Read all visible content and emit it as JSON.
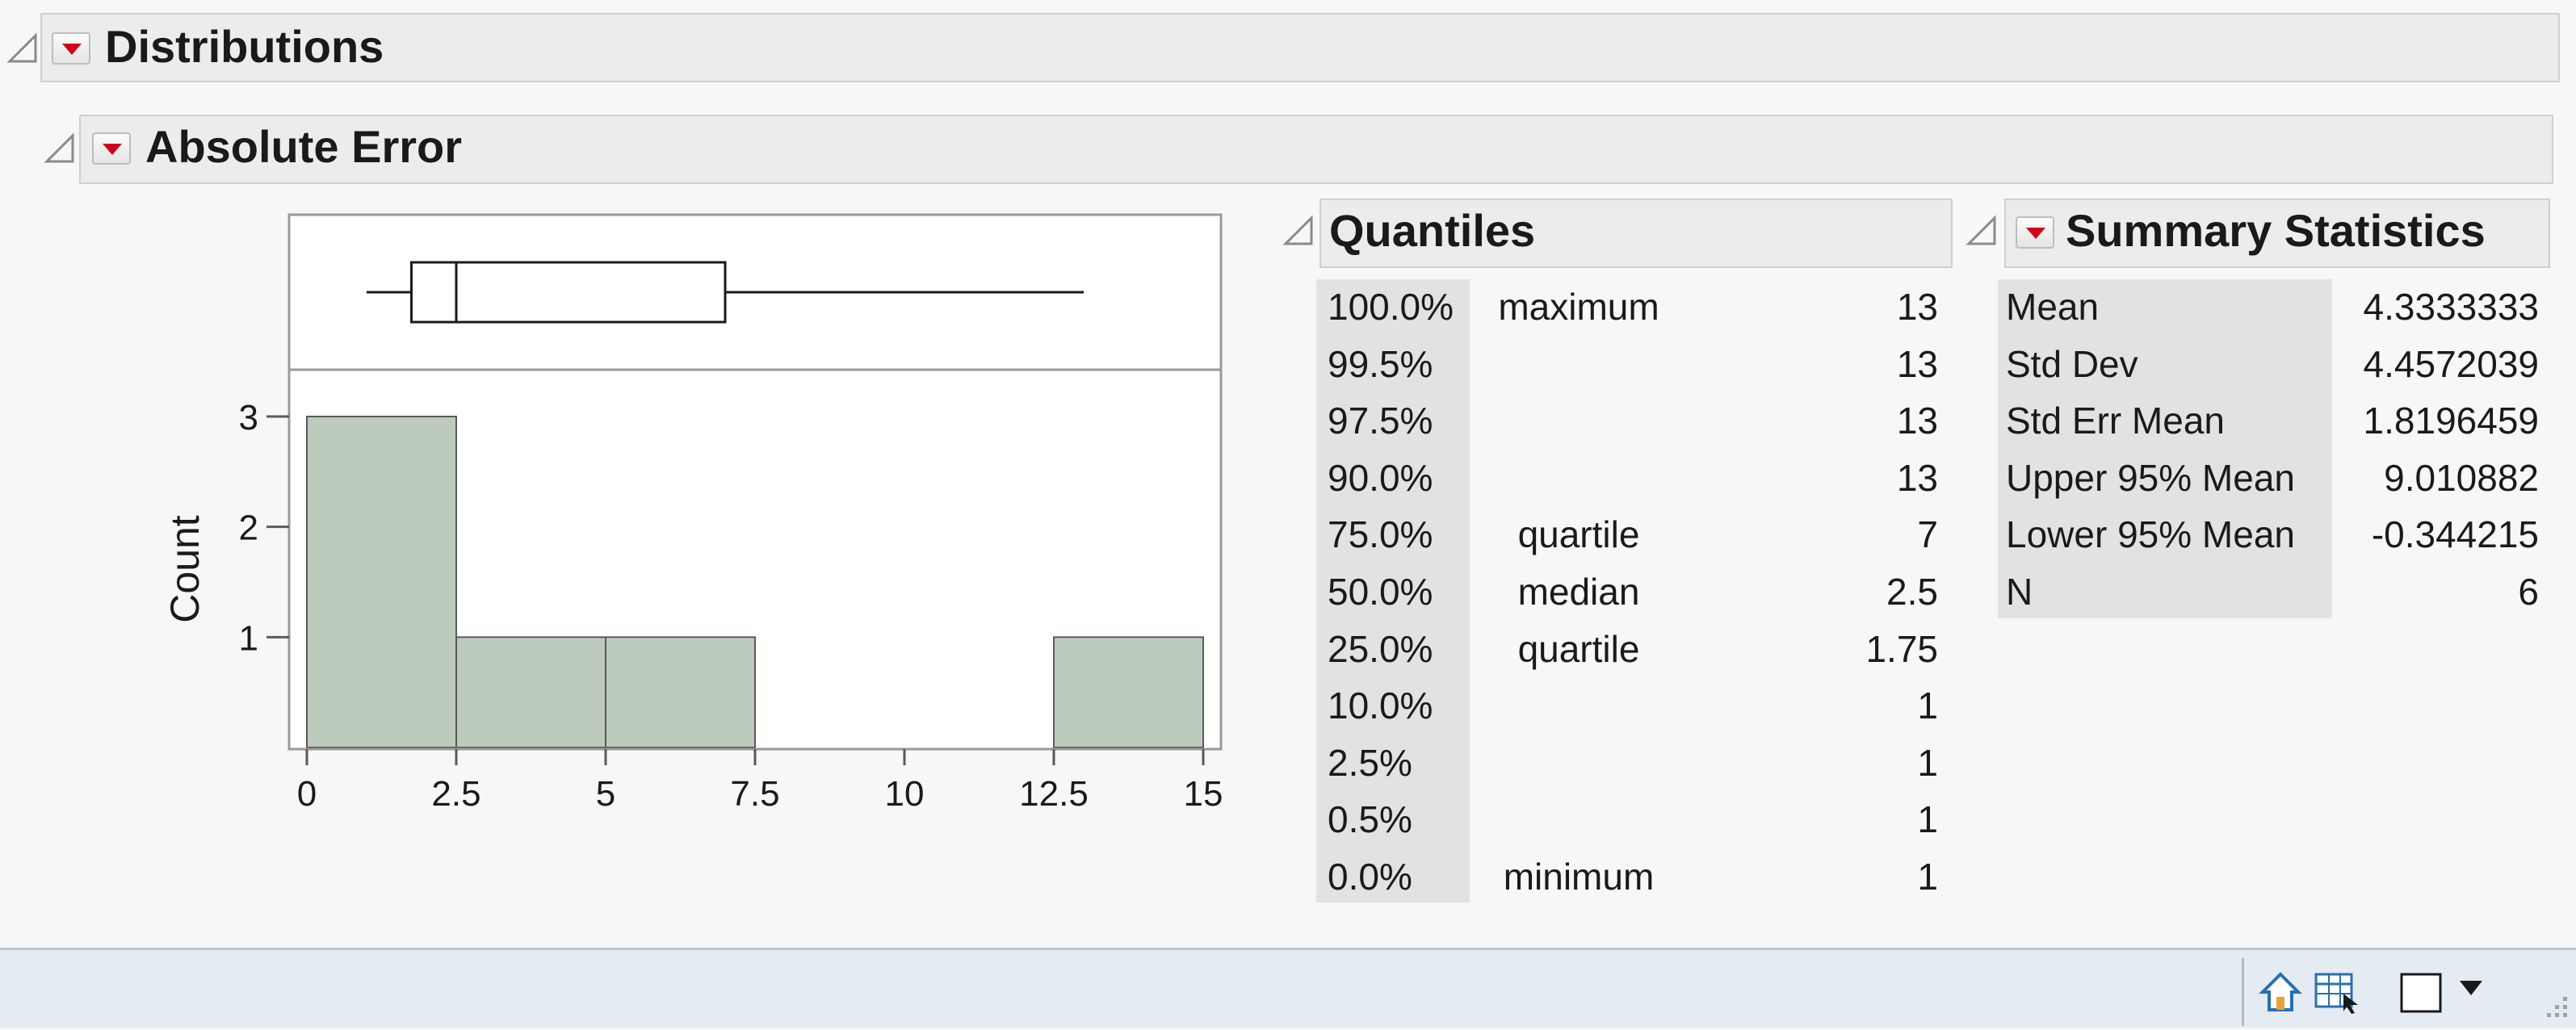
{
  "header": {
    "title": "Distributions"
  },
  "section": {
    "title": "Absolute Error"
  },
  "chart_data": {
    "type": "bar",
    "variable": "Absolute Error",
    "ylabel": "Count",
    "xlabel": "",
    "bins": [
      {
        "from": 0,
        "to": 2.5,
        "count": 3
      },
      {
        "from": 2.5,
        "to": 5,
        "count": 1
      },
      {
        "from": 5,
        "to": 7.5,
        "count": 1
      },
      {
        "from": 7.5,
        "to": 10,
        "count": 0
      },
      {
        "from": 10,
        "to": 12.5,
        "count": 0
      },
      {
        "from": 12.5,
        "to": 15,
        "count": 1
      }
    ],
    "x_ticks": [
      "0",
      "2.5",
      "5",
      "7.5",
      "10",
      "12.5",
      "15"
    ],
    "y_ticks": [
      "1",
      "2",
      "3"
    ],
    "xlim": [
      0,
      15
    ],
    "ylim": [
      0,
      3
    ],
    "bar_color": "#bccbbc",
    "boxplot": {
      "whisker_low": 1,
      "q1": 1.75,
      "median": 2.5,
      "q3": 7,
      "whisker_high": 13
    }
  },
  "quantiles": {
    "title": "Quantiles",
    "rows": [
      {
        "pct": "100.0%",
        "label": "maximum",
        "value": "13"
      },
      {
        "pct": "99.5%",
        "label": "",
        "value": "13"
      },
      {
        "pct": "97.5%",
        "label": "",
        "value": "13"
      },
      {
        "pct": "90.0%",
        "label": "",
        "value": "13"
      },
      {
        "pct": "75.0%",
        "label": "quartile",
        "value": "7"
      },
      {
        "pct": "50.0%",
        "label": "median",
        "value": "2.5"
      },
      {
        "pct": "25.0%",
        "label": "quartile",
        "value": "1.75"
      },
      {
        "pct": "10.0%",
        "label": "",
        "value": "1"
      },
      {
        "pct": "2.5%",
        "label": "",
        "value": "1"
      },
      {
        "pct": "0.5%",
        "label": "",
        "value": "1"
      },
      {
        "pct": "0.0%",
        "label": "minimum",
        "value": "1"
      }
    ]
  },
  "summary": {
    "title": "Summary Statistics",
    "rows": [
      {
        "label": "Mean",
        "value": "4.3333333"
      },
      {
        "label": "Std Dev",
        "value": "4.4572039"
      },
      {
        "label": "Std Err Mean",
        "value": "1.8196459"
      },
      {
        "label": "Upper 95% Mean",
        "value": "9.010882"
      },
      {
        "label": "Lower 95% Mean",
        "value": "-0.344215"
      },
      {
        "label": "N",
        "value": "6"
      }
    ]
  },
  "statusbar": {
    "icons": [
      "home-icon",
      "table-select-icon",
      "window-box-icon",
      "dropdown-arrow-icon",
      "resize-grip-icon"
    ]
  },
  "colors": {
    "red_triangle": "#d0021b",
    "outline_bg": "#ececec",
    "status_bg": "#e4ebf3"
  }
}
